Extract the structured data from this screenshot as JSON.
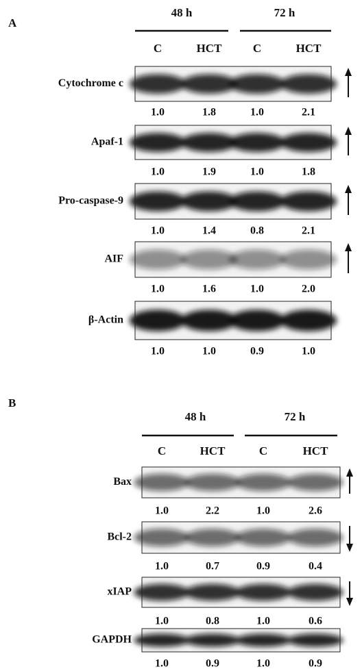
{
  "panels": [
    {
      "label": "A",
      "groups": [
        {
          "label": "48 h",
          "columns": [
            "C",
            "HCT"
          ]
        },
        {
          "label": "72 h",
          "columns": [
            "C",
            "HCT"
          ]
        }
      ],
      "rows": [
        {
          "label": "Cytochrome c",
          "values": [
            "1.0",
            "1.8",
            "1.0",
            "2.1"
          ]
        },
        {
          "label": "Apaf-1",
          "values": [
            "1.0",
            "1.9",
            "1.0",
            "1.8"
          ]
        },
        {
          "label": "Pro-caspase-9",
          "values": [
            "1.0",
            "1.4",
            "0.8",
            "2.1"
          ]
        },
        {
          "label": "AIF",
          "values": [
            "1.0",
            "1.6",
            "1.0",
            "2.0"
          ]
        },
        {
          "label": "β-Actin",
          "values": [
            "1.0",
            "1.0",
            "0.9",
            "1.0"
          ]
        }
      ]
    },
    {
      "label": "B",
      "groups": [
        {
          "label": "48 h",
          "columns": [
            "C",
            "HCT"
          ]
        },
        {
          "label": "72 h",
          "columns": [
            "C",
            "HCT"
          ]
        }
      ],
      "rows": [
        {
          "label": "Bax",
          "values": [
            "1.0",
            "2.2",
            "1.0",
            "2.6"
          ]
        },
        {
          "label": "Bcl-2",
          "values": [
            "1.0",
            "0.7",
            "0.9",
            "0.4"
          ]
        },
        {
          "label": "xIAP",
          "values": [
            "1.0",
            "0.8",
            "1.0",
            "0.6"
          ]
        },
        {
          "label": "GAPDH",
          "values": [
            "1.0",
            "0.9",
            "1.0",
            "0.9"
          ]
        }
      ]
    }
  ]
}
